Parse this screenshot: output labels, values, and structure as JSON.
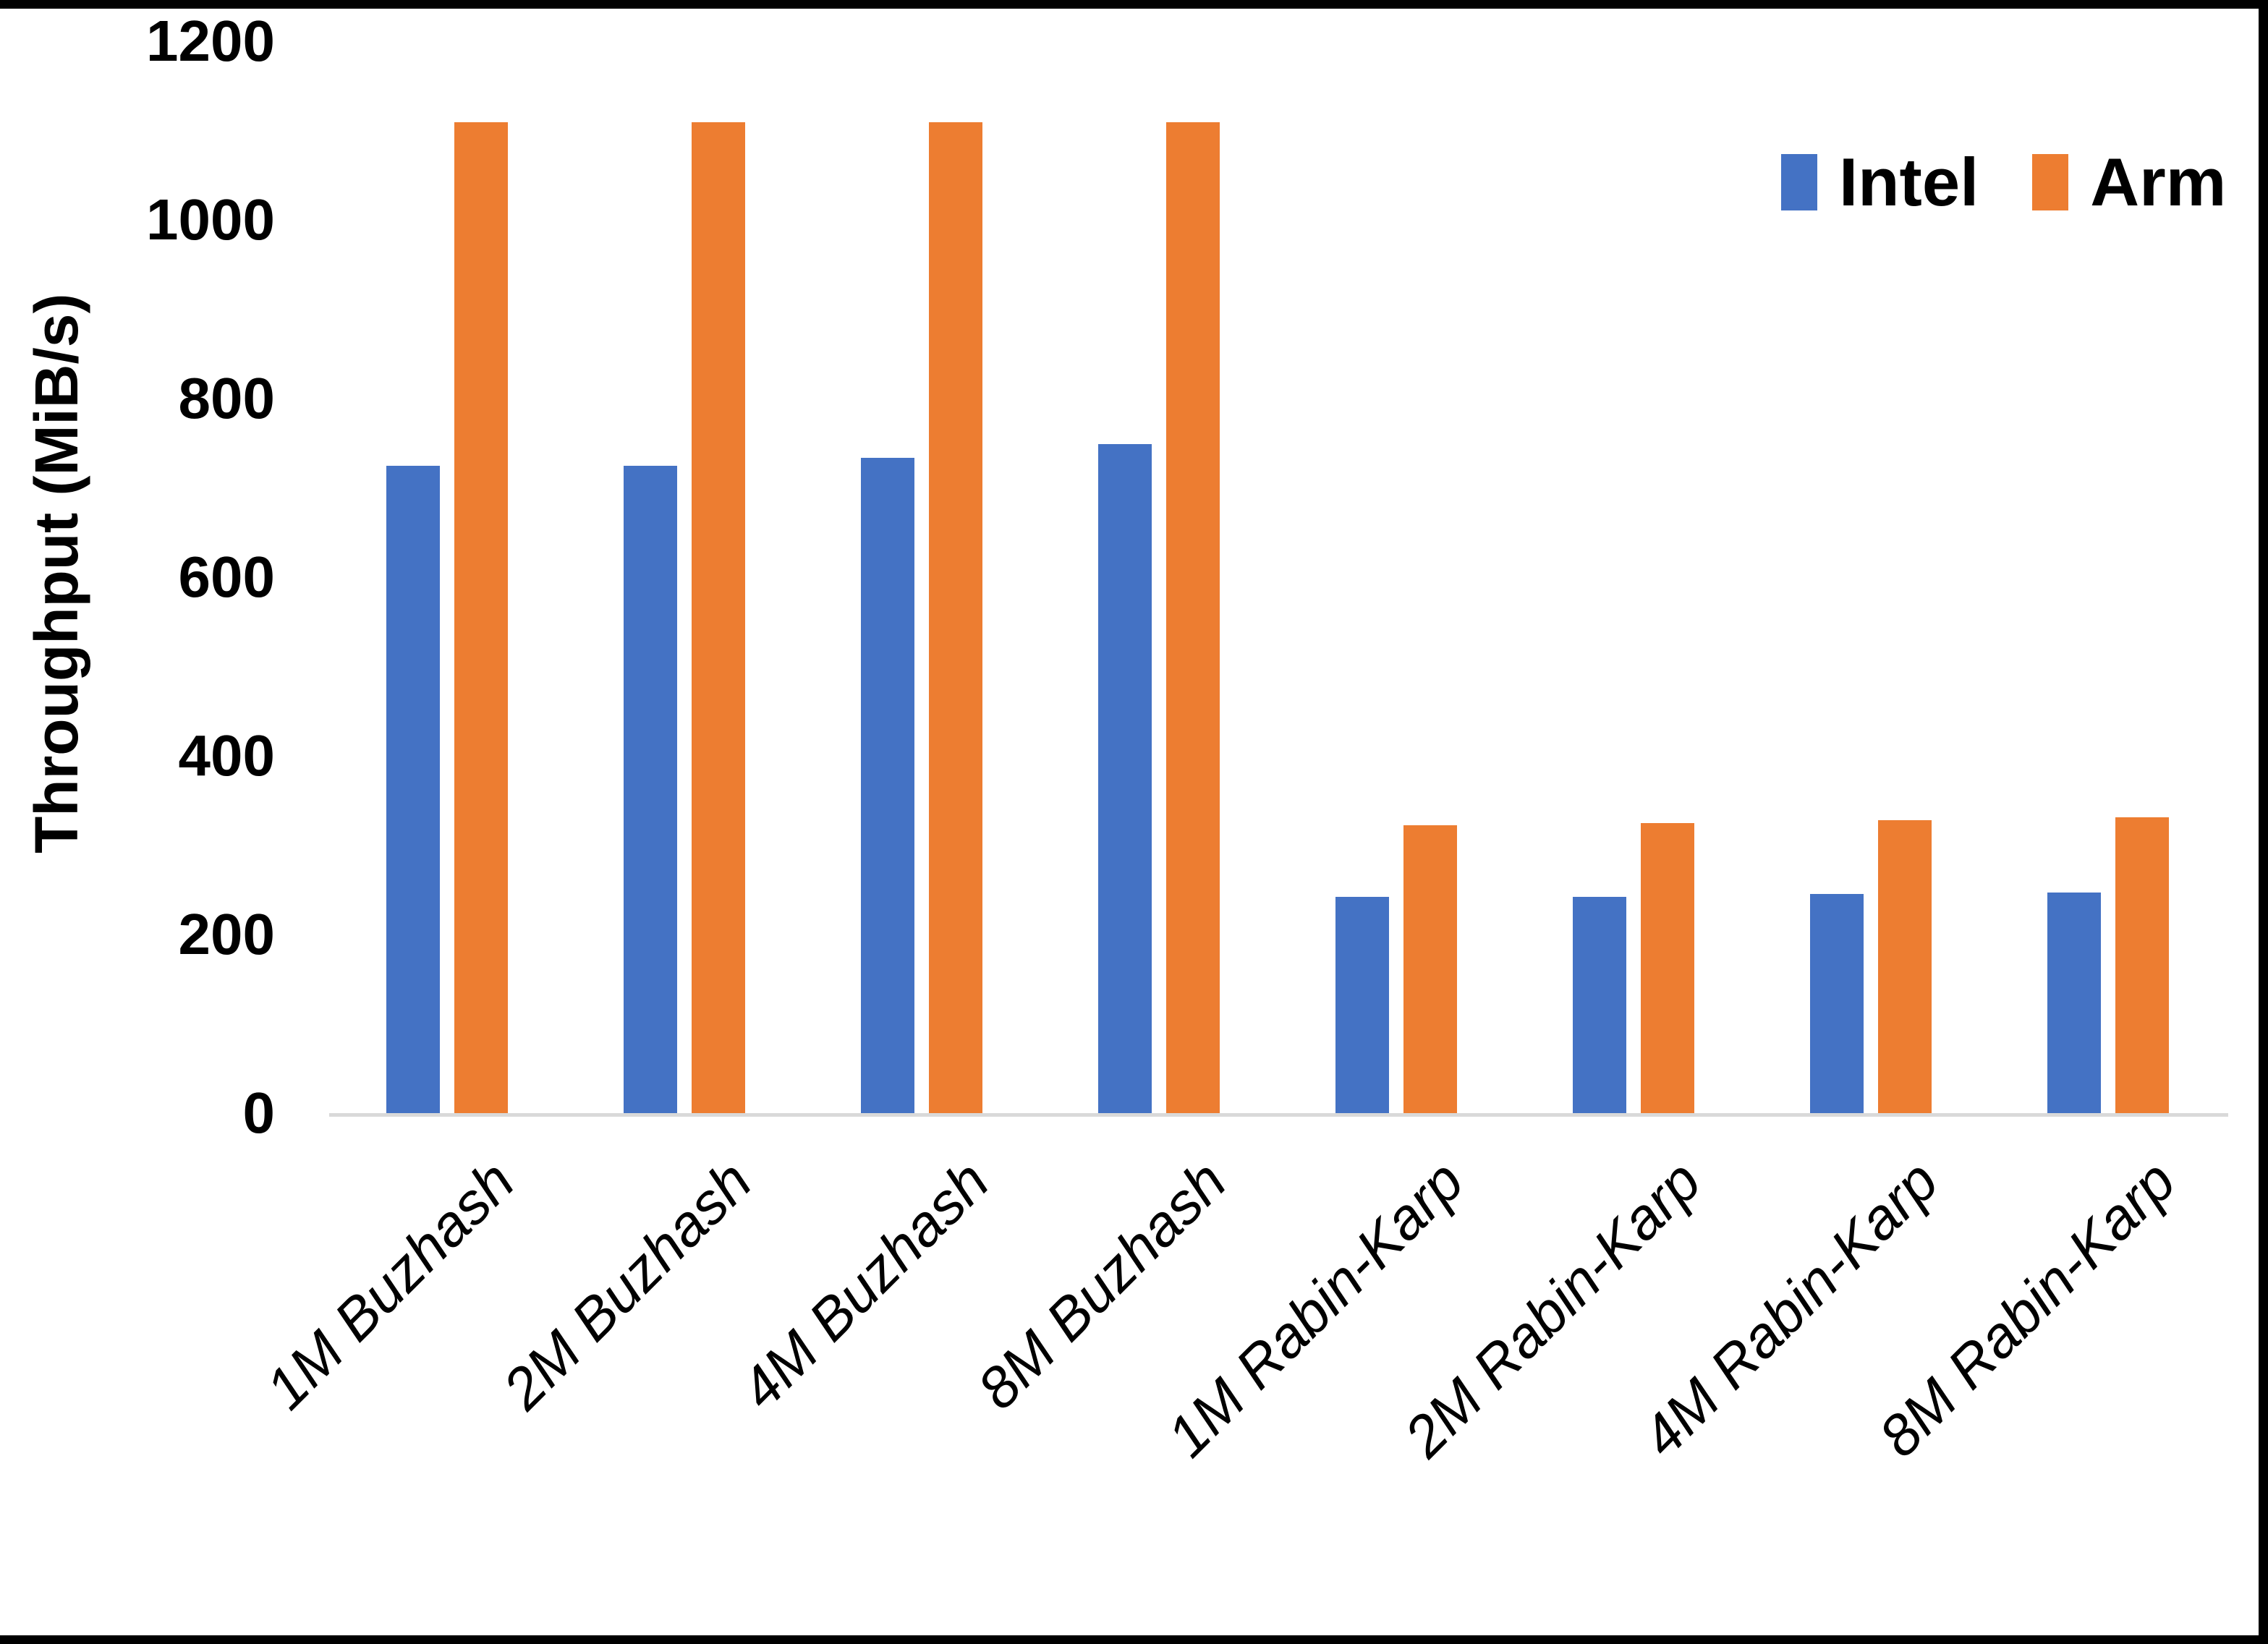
{
  "chart_data": {
    "type": "bar",
    "title": "",
    "ylabel": "Throughput (MiB/s)",
    "xlabel": "",
    "ylim": [
      0,
      1200
    ],
    "yticks": [
      0,
      200,
      400,
      600,
      800,
      1000,
      1200
    ],
    "grid": false,
    "legend_position": "top-right",
    "categories": [
      "1M Buzhash",
      "2M Buzhash",
      "4M Buzhash",
      "8M Buzhash",
      "1M Rabin-Karp",
      "2M Rabin-Karp",
      "4M Rabin-Karp",
      "8M Rabin-Karp"
    ],
    "series": [
      {
        "name": "Intel",
        "color": "#4472C4",
        "values": [
          725,
          725,
          734,
          749,
          242,
          242,
          245,
          247
        ]
      },
      {
        "name": "Arm",
        "color": "#ED7D31",
        "values": [
          1109,
          1109,
          1109,
          1109,
          322,
          325,
          328,
          331
        ]
      }
    ],
    "colors": {
      "axis_line": "#d9d9d9",
      "text": "#000000",
      "frame_border": "#000000"
    }
  }
}
